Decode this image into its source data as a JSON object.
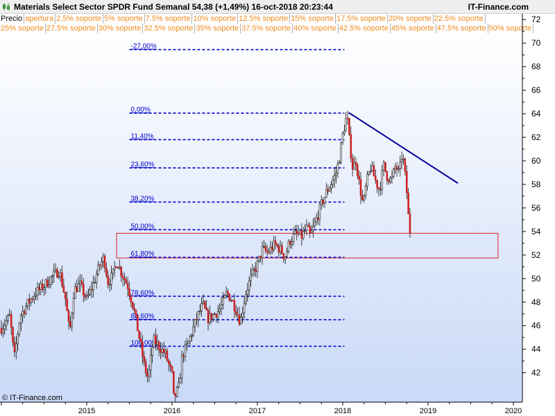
{
  "window": {
    "title": "Materials Select Sector SPDR Fund   Semanal   54,38 (+1,49%)   16-oct-2018 20:23:44",
    "brand": "IT-Finance.com",
    "copyright": "© IT-Finance.com",
    "icon": "candlestick-chart-icon"
  },
  "legend": {
    "row1": [
      "Precio",
      "apertura",
      "2.5% soporte",
      "5% soporte",
      "7.5% soporte",
      "10% soporte",
      "12.5% soporte",
      "15% soporte",
      "17.5% soporte",
      "20% soporte",
      "22.5% soporte"
    ],
    "row2": [
      "25% soporte",
      "27.5% soporte",
      "30% soporte",
      "32.5% soporte",
      "35% soporte",
      "37.5% soporte",
      "40% soporte",
      "42.5% soporte",
      "45% soporte",
      "47.5% soporte",
      "50% soporte"
    ]
  },
  "colors": {
    "plot_top": "#ffffff",
    "plot_bottom": "#c9d9f7",
    "fib": "#0000cc",
    "trendline": "#000099",
    "zone_border": "#dd2222",
    "zone_fill": "#dce6fa",
    "candle_up": "#111111",
    "candle_down": "#cc2222",
    "legend_text": "#f08a1c"
  },
  "chart_data": {
    "type": "candlestick",
    "title": "Materials Select Sector SPDR Fund",
    "period": "Semanal",
    "last_price": "54,38",
    "change": "(+1,49%)",
    "timestamp": "16-oct-2018 20:23:44",
    "x_ticks": [
      "2015",
      "2016",
      "2017",
      "2018",
      "2019",
      "2020"
    ],
    "y_ticks": [
      "42",
      "44",
      "46",
      "48",
      "50",
      "52",
      "54",
      "56",
      "58",
      "60",
      "62",
      "64",
      "66",
      "68",
      "70",
      "72"
    ],
    "ylim": [
      40,
      72.5
    ],
    "xlim": [
      2014.0,
      2020.15
    ],
    "grid": false,
    "fibonacci": [
      {
        "label": "-27,00%",
        "price": 69.45
      },
      {
        "label": "0,00%",
        "price": 64.05
      },
      {
        "label": "11,40%",
        "price": 61.8
      },
      {
        "label": "23,60%",
        "price": 59.4
      },
      {
        "label": "38,20%",
        "price": 56.5
      },
      {
        "label": "50,00%",
        "price": 54.15
      },
      {
        "label": "61,80%",
        "price": 51.8
      },
      {
        "label": "78,60%",
        "price": 48.5
      },
      {
        "label": "88,60%",
        "price": 46.5
      },
      {
        "label": "100,00%",
        "price": 44.25
      }
    ],
    "fib_x_range": [
      2015.5,
      2018.02
    ],
    "trendline": {
      "from": [
        2018.07,
        64.1
      ],
      "to": [
        2019.35,
        58.1
      ]
    },
    "zone": {
      "x_range": [
        2015.35,
        2019.82
      ],
      "y_range": [
        51.75,
        53.85
      ]
    },
    "path": [
      [
        2014.0,
        45.8
      ],
      [
        2014.1,
        46.8
      ],
      [
        2014.15,
        43.2
      ],
      [
        2014.22,
        46.8
      ],
      [
        2014.3,
        47.8
      ],
      [
        2014.4,
        48.8
      ],
      [
        2014.5,
        49.4
      ],
      [
        2014.6,
        50.2
      ],
      [
        2014.68,
        50.7
      ],
      [
        2014.75,
        48.3
      ],
      [
        2014.8,
        45.3
      ],
      [
        2014.85,
        49.0
      ],
      [
        2014.92,
        49.5
      ],
      [
        2015.0,
        48.2
      ],
      [
        2015.08,
        49.6
      ],
      [
        2015.15,
        51.1
      ],
      [
        2015.2,
        51.8
      ],
      [
        2015.25,
        49.7
      ],
      [
        2015.3,
        50.2
      ],
      [
        2015.35,
        51.5
      ],
      [
        2015.4,
        50.6
      ],
      [
        2015.48,
        49.4
      ],
      [
        2015.55,
        47.5
      ],
      [
        2015.62,
        44.8
      ],
      [
        2015.68,
        42.4
      ],
      [
        2015.72,
        41.5
      ],
      [
        2015.78,
        44.8
      ],
      [
        2015.85,
        44.2
      ],
      [
        2015.92,
        43.6
      ],
      [
        2016.0,
        41.8
      ],
      [
        2016.02,
        39.8
      ],
      [
        2016.08,
        40.8
      ],
      [
        2016.12,
        43.5
      ],
      [
        2016.18,
        44.3
      ],
      [
        2016.24,
        45.6
      ],
      [
        2016.3,
        46.8
      ],
      [
        2016.36,
        47.8
      ],
      [
        2016.42,
        46.6
      ],
      [
        2016.48,
        46.9
      ],
      [
        2016.55,
        47.3
      ],
      [
        2016.6,
        48.0
      ],
      [
        2016.64,
        48.8
      ],
      [
        2016.7,
        48.2
      ],
      [
        2016.76,
        47.2
      ],
      [
        2016.8,
        46.3
      ],
      [
        2016.86,
        48.7
      ],
      [
        2016.92,
        50.0
      ],
      [
        2017.0,
        51.2
      ],
      [
        2017.06,
        52.5
      ],
      [
        2017.12,
        52.2
      ],
      [
        2017.2,
        52.9
      ],
      [
        2017.28,
        52.4
      ],
      [
        2017.32,
        51.8
      ],
      [
        2017.38,
        53.2
      ],
      [
        2017.45,
        53.8
      ],
      [
        2017.52,
        53.6
      ],
      [
        2017.58,
        54.3
      ],
      [
        2017.62,
        53.6
      ],
      [
        2017.7,
        55.2
      ],
      [
        2017.76,
        56.5
      ],
      [
        2017.82,
        57.5
      ],
      [
        2017.88,
        58.3
      ],
      [
        2017.92,
        58.9
      ],
      [
        2017.96,
        60.2
      ],
      [
        2018.0,
        62.2
      ],
      [
        2018.05,
        63.9
      ],
      [
        2018.08,
        61.6
      ],
      [
        2018.12,
        59.2
      ],
      [
        2018.15,
        60.2
      ],
      [
        2018.2,
        57.8
      ],
      [
        2018.24,
        56.2
      ],
      [
        2018.28,
        58.2
      ],
      [
        2018.33,
        59.5
      ],
      [
        2018.38,
        58.4
      ],
      [
        2018.43,
        57.5
      ],
      [
        2018.48,
        59.6
      ],
      [
        2018.52,
        58.7
      ],
      [
        2018.57,
        58.3
      ],
      [
        2018.62,
        59.6
      ],
      [
        2018.66,
        58.9
      ],
      [
        2018.7,
        60.7
      ],
      [
        2018.73,
        58.8
      ],
      [
        2018.76,
        56.6
      ],
      [
        2018.78,
        53.8
      ],
      [
        2018.8,
        54.38
      ]
    ]
  }
}
